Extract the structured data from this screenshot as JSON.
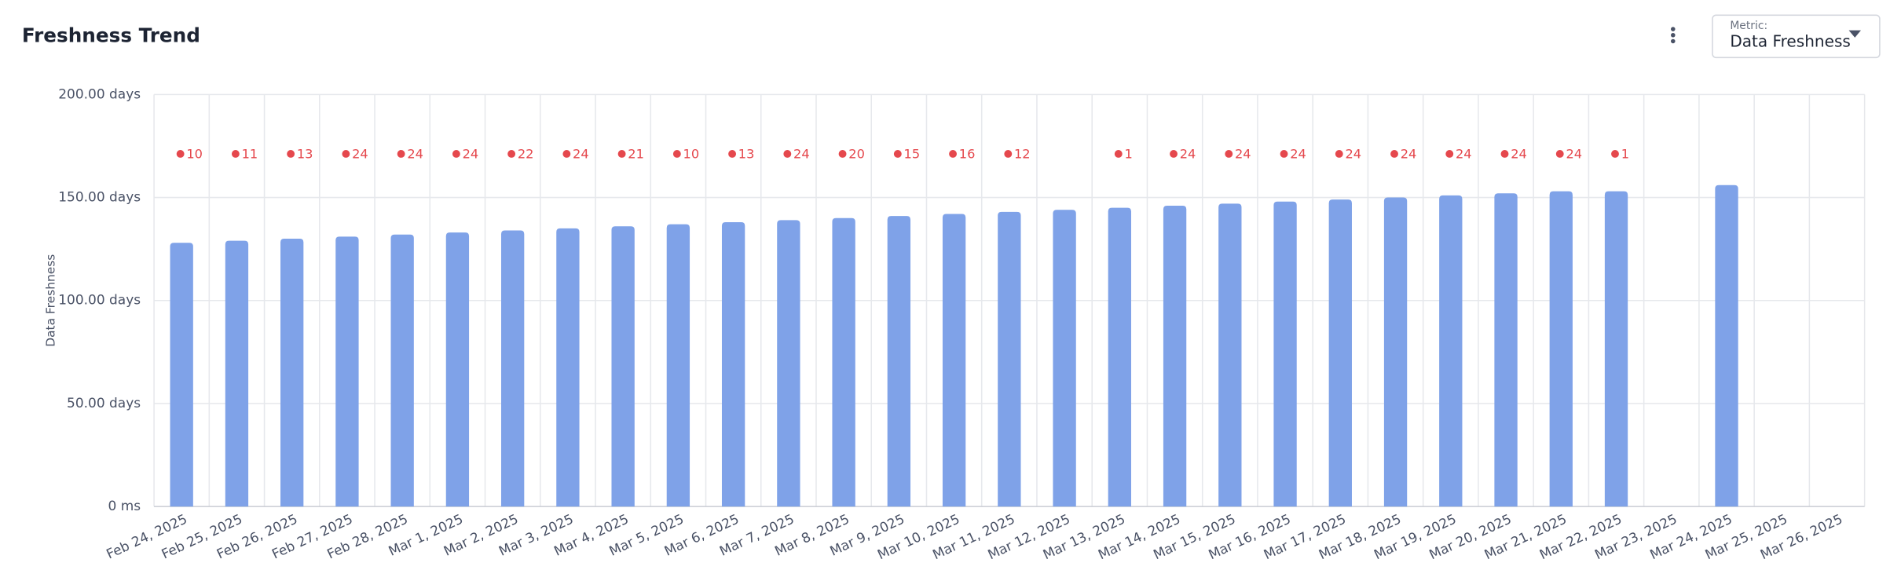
{
  "chart_data": {
    "type": "bar",
    "title": "Freshness Trend",
    "y_label": "Data Freshness",
    "categories": [
      "Feb 24, 2025",
      "Feb 25, 2025",
      "Feb 26, 2025",
      "Feb 27, 2025",
      "Feb 28, 2025",
      "Mar 1, 2025",
      "Mar 2, 2025",
      "Mar 3, 2025",
      "Mar 4, 2025",
      "Mar 5, 2025",
      "Mar 6, 2025",
      "Mar 7, 2025",
      "Mar 8, 2025",
      "Mar 9, 2025",
      "Mar 10, 2025",
      "Mar 11, 2025",
      "Mar 12, 2025",
      "Mar 13, 2025",
      "Mar 14, 2025",
      "Mar 15, 2025",
      "Mar 16, 2025",
      "Mar 17, 2025",
      "Mar 18, 2025",
      "Mar 19, 2025",
      "Mar 20, 2025",
      "Mar 21, 2025",
      "Mar 22, 2025",
      "Mar 23, 2025",
      "Mar 24, 2025",
      "Mar 25, 2025",
      "Mar 26, 2025"
    ],
    "values": [
      128,
      129,
      130,
      131,
      132,
      133,
      134,
      135,
      136,
      137,
      138,
      139,
      140,
      141,
      142,
      143,
      144,
      145,
      146,
      147,
      148,
      149,
      150,
      151,
      152,
      153,
      153,
      null,
      156,
      null,
      null
    ],
    "color": "#7fa2e8",
    "markers": [
      10,
      11,
      13,
      24,
      24,
      24,
      22,
      24,
      21,
      10,
      13,
      24,
      20,
      15,
      16,
      12,
      null,
      1,
      24,
      24,
      24,
      24,
      24,
      24,
      24,
      24,
      1,
      null,
      null,
      null,
      null
    ],
    "marker_color": "#e5484d",
    "ylim": [
      0,
      200
    ],
    "yticks": [
      {
        "value": 0,
        "label": "0 ms"
      },
      {
        "value": 50,
        "label": "50.00 days"
      },
      {
        "value": 100,
        "label": "100.00 days"
      },
      {
        "value": 150,
        "label": "150.00 days"
      },
      {
        "value": 200,
        "label": "200.00 days"
      }
    ],
    "grid": true
  },
  "controls": {
    "metric_label": "Metric:",
    "metric_value": "Data Freshness"
  }
}
